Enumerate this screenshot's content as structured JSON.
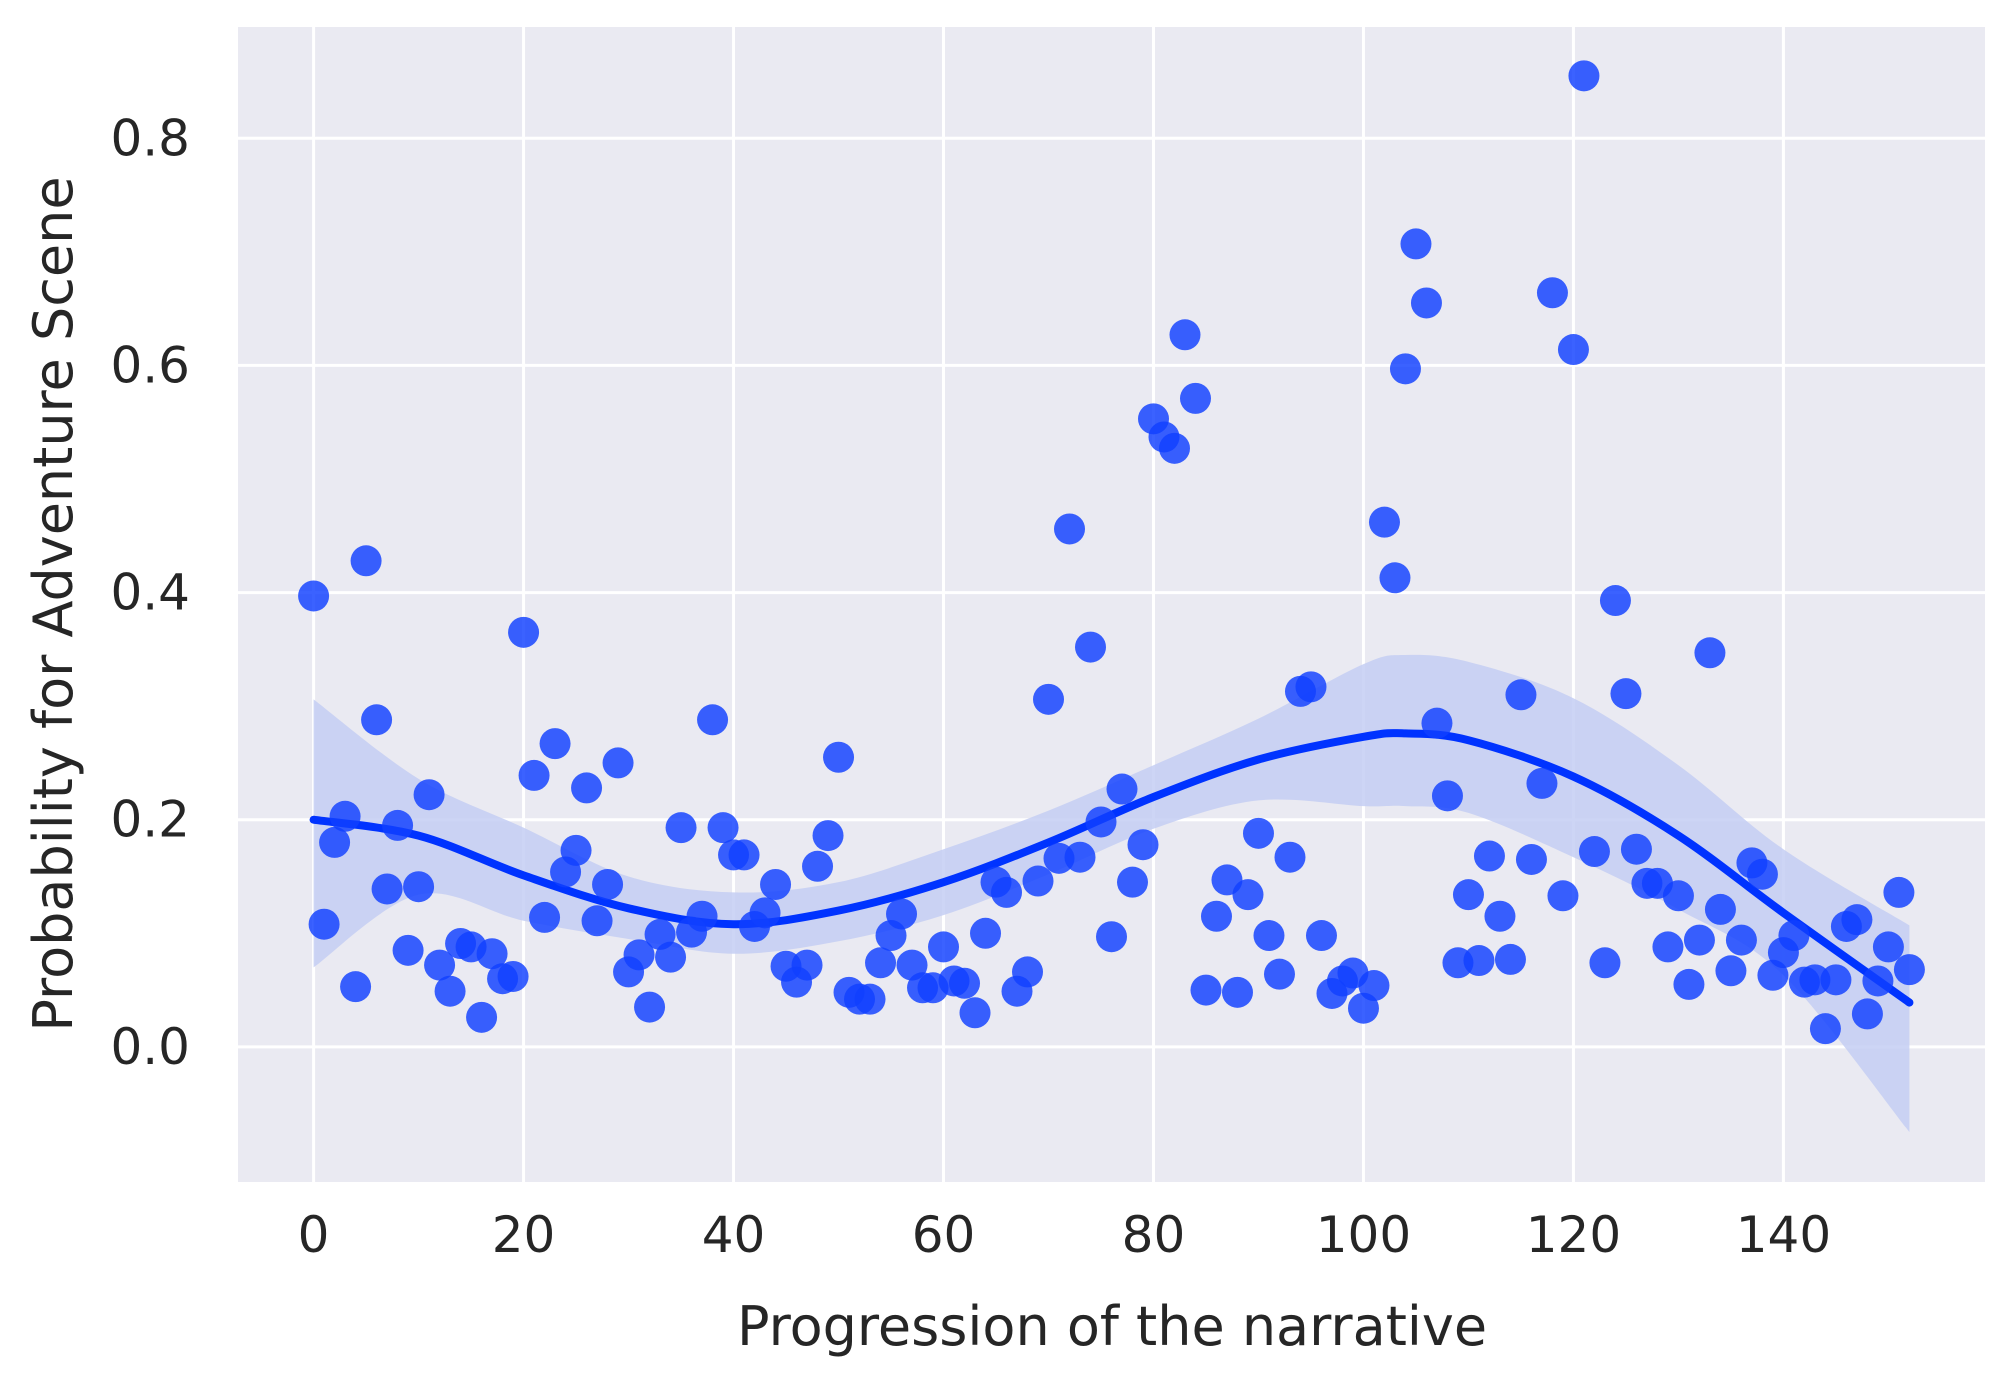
{
  "chart_data": {
    "type": "scatter",
    "title": "",
    "xlabel": "Progression of the narrative",
    "ylabel": "Probability for Adventure Scene",
    "xlim": [
      -7.2,
      159.2
    ],
    "ylim": [
      -0.119,
      0.898
    ],
    "xticks": [
      0,
      20,
      40,
      60,
      80,
      100,
      120,
      140
    ],
    "yticks": [
      0.0,
      0.2,
      0.4,
      0.6,
      0.8
    ],
    "xtick_labels": [
      "0",
      "20",
      "40",
      "60",
      "80",
      "100",
      "120",
      "140"
    ],
    "ytick_labels": [
      "0.0",
      "0.2",
      "0.4",
      "0.6",
      "0.8"
    ],
    "grid": true,
    "colors": {
      "background": "#EAEAF2",
      "grid": "#FFFFFF",
      "points": "#1040FF",
      "fit_line": "#0033FF",
      "confidence_band": "#C4CEF3",
      "text": "#262626"
    },
    "points": {
      "x": [
        0,
        1,
        2,
        3,
        4,
        5,
        6,
        7,
        8,
        9,
        10,
        11,
        12,
        13,
        14,
        15,
        16,
        17,
        18,
        19,
        20,
        21,
        22,
        23,
        24,
        25,
        26,
        27,
        28,
        29,
        30,
        31,
        32,
        33,
        34,
        35,
        36,
        37,
        38,
        39,
        40,
        41,
        42,
        43,
        44,
        45,
        46,
        47,
        48,
        49,
        50,
        51,
        52,
        53,
        54,
        55,
        56,
        57,
        58,
        59,
        60,
        61,
        62,
        63,
        64,
        65,
        66,
        67,
        68,
        69,
        70,
        71,
        72,
        73,
        74,
        75,
        76,
        77,
        78,
        79,
        80,
        81,
        82,
        83,
        84,
        85,
        86,
        87,
        88,
        89,
        90,
        91,
        92,
        93,
        94,
        95,
        96,
        97,
        98,
        99,
        100,
        101,
        102,
        103,
        104,
        105,
        106,
        107,
        108,
        109,
        110,
        111,
        112,
        113,
        114,
        115,
        116,
        117,
        118,
        119,
        120,
        121,
        122,
        123,
        124,
        125,
        126,
        127,
        128,
        129,
        130,
        131,
        132,
        133,
        134,
        135,
        136,
        137,
        138,
        139,
        140,
        141,
        142,
        143,
        144,
        145,
        146,
        147,
        148,
        149,
        150,
        151,
        152
      ],
      "y": [
        0.397,
        0.108,
        0.18,
        0.203,
        0.053,
        0.428,
        0.288,
        0.139,
        0.195,
        0.085,
        0.141,
        0.222,
        0.072,
        0.049,
        0.091,
        0.088,
        0.026,
        0.082,
        0.06,
        0.062,
        0.365,
        0.239,
        0.114,
        0.267,
        0.154,
        0.173,
        0.228,
        0.111,
        0.143,
        0.25,
        0.066,
        0.081,
        0.035,
        0.099,
        0.079,
        0.193,
        0.101,
        0.115,
        0.288,
        0.193,
        0.169,
        0.169,
        0.106,
        0.118,
        0.143,
        0.071,
        0.057,
        0.072,
        0.159,
        0.186,
        0.255,
        0.048,
        0.042,
        0.042,
        0.074,
        0.098,
        0.117,
        0.072,
        0.052,
        0.052,
        0.088,
        0.058,
        0.056,
        0.03,
        0.1,
        0.145,
        0.136,
        0.049,
        0.066,
        0.146,
        0.306,
        0.166,
        0.456,
        0.167,
        0.352,
        0.198,
        0.097,
        0.227,
        0.145,
        0.178,
        0.553,
        0.537,
        0.527,
        0.627,
        0.571,
        0.05,
        0.115,
        0.147,
        0.048,
        0.134,
        0.188,
        0.098,
        0.064,
        0.167,
        0.313,
        0.317,
        0.098,
        0.047,
        0.058,
        0.065,
        0.034,
        0.054,
        0.462,
        0.413,
        0.597,
        0.707,
        0.655,
        0.285,
        0.221,
        0.074,
        0.134,
        0.076,
        0.168,
        0.115,
        0.077,
        0.31,
        0.165,
        0.232,
        0.664,
        0.133,
        0.614,
        0.855,
        0.172,
        0.074,
        0.393,
        0.311,
        0.174,
        0.144,
        0.144,
        0.088,
        0.133,
        0.055,
        0.094,
        0.347,
        0.121,
        0.067,
        0.094,
        0.162,
        0.152,
        0.063,
        0.083,
        0.098,
        0.057,
        0.059,
        0.016,
        0.059,
        0.106,
        0.112,
        0.029,
        0.058,
        0.088,
        0.136,
        0.068
      ]
    },
    "fit": {
      "type": "polynomial regression",
      "x": [
        0,
        10,
        20,
        30,
        40,
        50,
        60,
        70,
        80,
        90,
        100,
        104,
        110,
        120,
        130,
        140,
        152
      ],
      "y": [
        0.2,
        0.186,
        0.151,
        0.122,
        0.108,
        0.12,
        0.145,
        0.18,
        0.22,
        0.253,
        0.273,
        0.276,
        0.27,
        0.238,
        0.186,
        0.118,
        0.039
      ],
      "ci_upper": [
        0.306,
        0.236,
        0.193,
        0.15,
        0.136,
        0.145,
        0.174,
        0.208,
        0.248,
        0.289,
        0.337,
        0.345,
        0.339,
        0.307,
        0.248,
        0.174,
        0.107
      ],
      "ci_lower": [
        0.07,
        0.134,
        0.111,
        0.095,
        0.082,
        0.093,
        0.116,
        0.152,
        0.192,
        0.217,
        0.212,
        0.212,
        0.206,
        0.167,
        0.121,
        0.063,
        -0.075
      ]
    }
  }
}
